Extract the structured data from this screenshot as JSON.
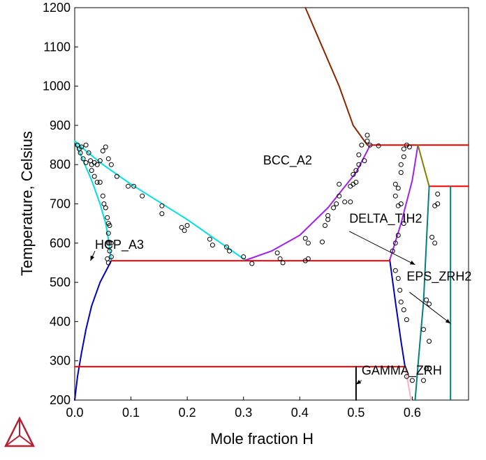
{
  "chart_data": {
    "type": "line",
    "xlabel": "Mole fraction H",
    "ylabel": "Temperature, Celsius",
    "xlim": [
      0,
      0.7
    ],
    "ylim": [
      200,
      1200
    ],
    "x_ticks": [
      0.0,
      0.1,
      0.2,
      0.3,
      0.4,
      0.5,
      0.6
    ],
    "x_tick_labels": [
      "0.0",
      "0.1",
      "0.2",
      "0.3",
      "0.4",
      "0.5",
      "0.6"
    ],
    "y_ticks": [
      200,
      300,
      400,
      500,
      600,
      700,
      800,
      900,
      1000,
      1100,
      1200
    ],
    "y_tick_labels": [
      "200",
      "300",
      "400",
      "500",
      "600",
      "700",
      "800",
      "900",
      "1000",
      "1100",
      "1200"
    ],
    "grid": false,
    "series": [
      {
        "color": "#00e0e0",
        "values": [
          [
            0.0,
            860
          ],
          [
            0.02,
            835
          ],
          [
            0.05,
            800
          ],
          [
            0.1,
            750
          ],
          [
            0.15,
            705
          ],
          [
            0.2,
            660
          ],
          [
            0.25,
            610
          ],
          [
            0.3,
            560
          ],
          [
            0.305,
            557
          ]
        ]
      },
      {
        "color": "#00e0e0",
        "values": [
          [
            0.0,
            860
          ],
          [
            0.015,
            810
          ],
          [
            0.03,
            760
          ],
          [
            0.045,
            700
          ],
          [
            0.055,
            650
          ],
          [
            0.06,
            610
          ],
          [
            0.065,
            555
          ]
        ]
      },
      {
        "color": "#0000c0",
        "values": [
          [
            0.0,
            200
          ],
          [
            0.005,
            260
          ],
          [
            0.012,
            320
          ],
          [
            0.02,
            380
          ],
          [
            0.03,
            440
          ],
          [
            0.045,
            500
          ],
          [
            0.065,
            555
          ]
        ]
      },
      {
        "color": "#8b2500",
        "values": [
          [
            0.41,
            1200
          ],
          [
            0.44,
            1100
          ],
          [
            0.47,
            1000
          ],
          [
            0.495,
            900
          ],
          [
            0.52,
            850
          ]
        ]
      },
      {
        "color": "#a020f0",
        "values": [
          [
            0.305,
            557
          ],
          [
            0.35,
            580
          ],
          [
            0.4,
            620
          ],
          [
            0.45,
            690
          ],
          [
            0.5,
            780
          ],
          [
            0.52,
            835
          ],
          [
            0.525,
            850
          ]
        ]
      },
      {
        "color": "#a020f0",
        "values": [
          [
            0.56,
            557
          ],
          [
            0.58,
            650
          ],
          [
            0.6,
            760
          ],
          [
            0.61,
            850
          ]
        ]
      },
      {
        "color": "#0000c0",
        "values": [
          [
            0.56,
            557
          ],
          [
            0.57,
            450
          ],
          [
            0.58,
            350
          ],
          [
            0.587,
            285
          ]
        ]
      },
      {
        "color": "#ff0000",
        "values": [
          [
            0.525,
            850
          ],
          [
            0.7,
            850
          ]
        ]
      },
      {
        "color": "#ff0000",
        "values": [
          [
            0.065,
            555
          ],
          [
            0.56,
            555
          ]
        ]
      },
      {
        "color": "#ff0000",
        "values": [
          [
            0.0,
            285
          ],
          [
            0.587,
            285
          ]
        ]
      },
      {
        "color": "#ff0000",
        "values": [
          [
            0.63,
            745
          ],
          [
            0.7,
            745
          ]
        ]
      },
      {
        "color": "#808000",
        "values": [
          [
            0.61,
            850
          ],
          [
            0.63,
            745
          ]
        ]
      },
      {
        "color": "#008080",
        "values": [
          [
            0.63,
            745
          ],
          [
            0.625,
            600
          ],
          [
            0.62,
            450
          ],
          [
            0.612,
            320
          ],
          [
            0.605,
            200
          ]
        ]
      },
      {
        "color": "#008080",
        "values": [
          [
            0.668,
            745
          ],
          [
            0.668,
            200
          ]
        ]
      },
      {
        "color": "#000000",
        "values": [
          [
            0.5,
            285
          ],
          [
            0.5,
            200
          ]
        ]
      },
      {
        "color": "#ffb0c0",
        "values": [
          [
            0.587,
            285
          ],
          [
            0.598,
            200
          ]
        ]
      }
    ],
    "points": [
      [
        0.005,
        850
      ],
      [
        0.008,
        840
      ],
      [
        0.01,
        830
      ],
      [
        0.012,
        845
      ],
      [
        0.015,
        815
      ],
      [
        0.02,
        850
      ],
      [
        0.02,
        805
      ],
      [
        0.025,
        830
      ],
      [
        0.028,
        810
      ],
      [
        0.03,
        800
      ],
      [
        0.03,
        785
      ],
      [
        0.035,
        805
      ],
      [
        0.035,
        770
      ],
      [
        0.04,
        755
      ],
      [
        0.04,
        800
      ],
      [
        0.045,
        810
      ],
      [
        0.045,
        755
      ],
      [
        0.05,
        835
      ],
      [
        0.05,
        720
      ],
      [
        0.052,
        700
      ],
      [
        0.055,
        845
      ],
      [
        0.055,
        690
      ],
      [
        0.058,
        665
      ],
      [
        0.06,
        650
      ],
      [
        0.06,
        625
      ],
      [
        0.06,
        600
      ],
      [
        0.062,
        580
      ],
      [
        0.065,
        565
      ],
      [
        0.06,
        550
      ],
      [
        0.058,
        560
      ],
      [
        0.062,
        600
      ],
      [
        0.062,
        645
      ],
      [
        0.065,
        600
      ],
      [
        0.06,
        815
      ],
      [
        0.065,
        800
      ],
      [
        0.075,
        770
      ],
      [
        0.095,
        745
      ],
      [
        0.105,
        745
      ],
      [
        0.12,
        720
      ],
      [
        0.155,
        695
      ],
      [
        0.155,
        675
      ],
      [
        0.2,
        645
      ],
      [
        0.19,
        640
      ],
      [
        0.195,
        632
      ],
      [
        0.24,
        610
      ],
      [
        0.245,
        595
      ],
      [
        0.27,
        590
      ],
      [
        0.275,
        580
      ],
      [
        0.3,
        565
      ],
      [
        0.315,
        548
      ],
      [
        0.36,
        575
      ],
      [
        0.365,
        560
      ],
      [
        0.37,
        550
      ],
      [
        0.41,
        612
      ],
      [
        0.415,
        600
      ],
      [
        0.41,
        555
      ],
      [
        0.415,
        560
      ],
      [
        0.44,
        603
      ],
      [
        0.445,
        645
      ],
      [
        0.45,
        660
      ],
      [
        0.45,
        670
      ],
      [
        0.46,
        690
      ],
      [
        0.465,
        700
      ],
      [
        0.47,
        720
      ],
      [
        0.47,
        750
      ],
      [
        0.48,
        705
      ],
      [
        0.49,
        705
      ],
      [
        0.49,
        745
      ],
      [
        0.495,
        750
      ],
      [
        0.495,
        775
      ],
      [
        0.5,
        785
      ],
      [
        0.5,
        755
      ],
      [
        0.505,
        825
      ],
      [
        0.505,
        800
      ],
      [
        0.51,
        850
      ],
      [
        0.515,
        810
      ],
      [
        0.52,
        875
      ],
      [
        0.52,
        860
      ],
      [
        0.525,
        850
      ],
      [
        0.54,
        848
      ],
      [
        0.57,
        720
      ],
      [
        0.57,
        750
      ],
      [
        0.575,
        695
      ],
      [
        0.575,
        740
      ],
      [
        0.58,
        700
      ],
      [
        0.58,
        780
      ],
      [
        0.58,
        800
      ],
      [
        0.585,
        820
      ],
      [
        0.585,
        840
      ],
      [
        0.59,
        850
      ],
      [
        0.595,
        845
      ],
      [
        0.585,
        650
      ],
      [
        0.575,
        620
      ],
      [
        0.57,
        600
      ],
      [
        0.565,
        580
      ],
      [
        0.57,
        530
      ],
      [
        0.575,
        510
      ],
      [
        0.578,
        480
      ],
      [
        0.58,
        450
      ],
      [
        0.585,
        430
      ],
      [
        0.59,
        405
      ],
      [
        0.59,
        260
      ],
      [
        0.6,
        250
      ],
      [
        0.62,
        380
      ],
      [
        0.62,
        250
      ],
      [
        0.625,
        455
      ],
      [
        0.63,
        445
      ],
      [
        0.63,
        350
      ],
      [
        0.625,
        280
      ],
      [
        0.63,
        280
      ],
      [
        0.635,
        615
      ],
      [
        0.64,
        600
      ],
      [
        0.645,
        725
      ],
      [
        0.645,
        700
      ],
      [
        0.64,
        695
      ]
    ],
    "annotations": [
      {
        "text": "BCC_A2",
        "x": 0.335,
        "y": 800
      },
      {
        "text": "HCP_A3",
        "x": 0.036,
        "y": 585
      },
      {
        "text": "DELTA_TIH2",
        "x": 0.488,
        "y": 652
      },
      {
        "text": "EPS_ZRH2",
        "x": 0.59,
        "y": 505
      },
      {
        "text": "GAMMA_ZRH",
        "x": 0.51,
        "y": 265
      }
    ],
    "arrows": [
      {
        "from": [
          0.036,
          580
        ],
        "to": [
          0.028,
          555
        ]
      },
      {
        "from": [
          0.488,
          630
        ],
        "to": [
          0.605,
          545
        ]
      },
      {
        "from": [
          0.595,
          475
        ],
        "to": [
          0.668,
          395
        ]
      },
      {
        "from": [
          0.51,
          250
        ],
        "to": [
          0.5,
          240
        ]
      }
    ]
  }
}
